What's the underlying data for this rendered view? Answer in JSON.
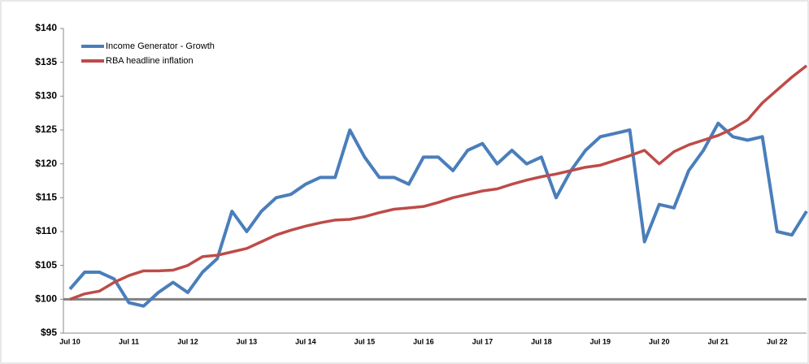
{
  "chart_data": {
    "type": "line",
    "x": [
      "Jul 10",
      "Oct 10",
      "Jan 11",
      "Apr 11",
      "Jul 11",
      "Oct 11",
      "Jan 12",
      "Apr 12",
      "Jul 12",
      "Oct 12",
      "Jan 13",
      "Apr 13",
      "Jul 13",
      "Oct 13",
      "Jan 14",
      "Apr 14",
      "Jul 14",
      "Oct 14",
      "Jan 15",
      "Apr 15",
      "Jul 15",
      "Oct 15",
      "Jan 16",
      "Apr 16",
      "Jul 16",
      "Oct 16",
      "Jan 17",
      "Apr 17",
      "Jul 17",
      "Oct 17",
      "Jan 18",
      "Apr 18",
      "Jul 18",
      "Oct 18",
      "Jan 19",
      "Apr 19",
      "Jul 19",
      "Oct 19",
      "Jan 20",
      "Apr 20",
      "Jul 20",
      "Oct 20",
      "Jan 21",
      "Apr 21",
      "Jul 21",
      "Oct 21",
      "Jan 22",
      "Apr 22",
      "Jul 22",
      "Oct 22",
      "Jan 23"
    ],
    "series": [
      {
        "name": "Income Generator - Growth",
        "color": "#4a7ebb",
        "values": [
          101.5,
          104,
          104,
          103,
          99.5,
          99,
          101,
          102.5,
          101,
          104,
          106,
          113,
          110,
          113,
          115,
          115.5,
          117,
          118,
          118,
          125,
          121,
          118,
          118,
          117,
          121,
          121,
          119,
          122,
          123,
          120,
          122,
          120,
          121,
          115,
          119,
          122,
          124,
          124.5,
          125,
          108.5,
          114,
          113.5,
          119,
          122,
          126,
          124,
          123.5,
          124,
          110,
          109.5,
          113
        ]
      },
      {
        "name": "RBA headline inflation",
        "color": "#be4b48",
        "values": [
          100,
          100.8,
          101.2,
          102.5,
          103.5,
          104.2,
          104.2,
          104.3,
          105,
          106.3,
          106.5,
          107,
          107.5,
          108.5,
          109.5,
          110.2,
          110.8,
          111.3,
          111.7,
          111.8,
          112.2,
          112.8,
          113.3,
          113.5,
          113.7,
          114.3,
          115,
          115.5,
          116,
          116.3,
          117,
          117.6,
          118.1,
          118.5,
          119,
          119.5,
          119.8,
          120.5,
          121.2,
          122,
          120,
          121.8,
          122.8,
          123.5,
          124.2,
          125.2,
          126.5,
          129,
          130.9,
          132.8,
          134.5
        ]
      }
    ],
    "hline": {
      "value": 100,
      "color": "#808080"
    },
    "ylim": [
      95,
      140
    ],
    "yticks": [
      {
        "value": 95,
        "label": "$95"
      },
      {
        "value": 100,
        "label": "$100"
      },
      {
        "value": 105,
        "label": "$105"
      },
      {
        "value": 110,
        "label": "$110"
      },
      {
        "value": 115,
        "label": "$115"
      },
      {
        "value": 120,
        "label": "$120"
      },
      {
        "value": 125,
        "label": "$125"
      },
      {
        "value": 130,
        "label": "$130"
      },
      {
        "value": 135,
        "label": "$135"
      },
      {
        "value": 140,
        "label": "$140"
      }
    ],
    "xticks": [
      "Jul 10",
      "Jul 11",
      "Jul 12",
      "Jul 13",
      "Jul 14",
      "Jul 15",
      "Jul 16",
      "Jul 17",
      "Jul 18",
      "Jul 19",
      "Jul 20",
      "Jul 21",
      "Jul 22"
    ],
    "legend": "top-left"
  }
}
